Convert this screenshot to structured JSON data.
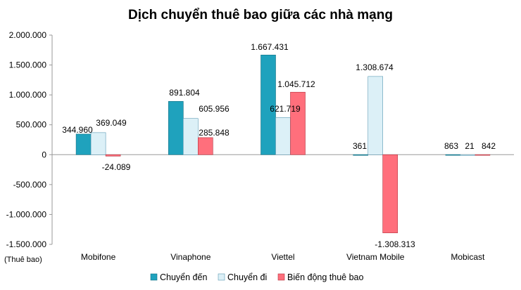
{
  "chart_data": {
    "type": "bar",
    "title": "Dịch chuyển thuê bao giữa các nhà mạng",
    "unit_label": "(Thuê bao)",
    "categories": [
      "Mobifone",
      "Vinaphone",
      "Viettel",
      "Vietnam Mobile",
      "Mobicast"
    ],
    "series": [
      {
        "name": "Chuyển đến",
        "color": "#1fa2bd",
        "stroke": "#136f82",
        "values": [
          344960,
          891804,
          1667431,
          361,
          863
        ],
        "labels": [
          "344.960",
          "891.804",
          "1.667.431",
          "361",
          "863"
        ]
      },
      {
        "name": "Chuyển đi",
        "color": "#dcf0f7",
        "stroke": "#5a99b3",
        "values": [
          369049,
          605956,
          621719,
          1308674,
          21
        ],
        "labels": [
          "369.049",
          "605.956",
          "621.719",
          "1.308.674",
          "21"
        ]
      },
      {
        "name": "Biến động thuê bao",
        "color": "#ff6f7c",
        "stroke": "#b4333f",
        "values": [
          -24089,
          285848,
          1045712,
          -1308313,
          842
        ],
        "labels": [
          "-24.089",
          "285.848",
          "1.045.712",
          "-1.308.313",
          "842"
        ]
      }
    ],
    "ylim": [
      -1500000,
      2000000
    ],
    "yticks": [
      {
        "value": 2000000,
        "label": "2.000.000"
      },
      {
        "value": 1500000,
        "label": "1.500.000"
      },
      {
        "value": 1000000,
        "label": "1.000.000"
      },
      {
        "value": 500000,
        "label": "500.000"
      },
      {
        "value": 0,
        "label": "0"
      },
      {
        "value": -500000,
        "label": "-500.000"
      },
      {
        "value": -1000000,
        "label": "-1.000.000"
      },
      {
        "value": -1500000,
        "label": "-1.500.000"
      }
    ],
    "grid": false,
    "legend_position": "bottom"
  }
}
